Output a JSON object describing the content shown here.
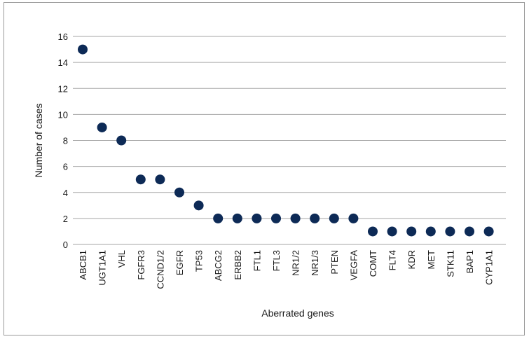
{
  "chart_data": {
    "type": "scatter",
    "title": "",
    "xlabel": "Aberrated genes",
    "ylabel": "Number of cases",
    "categories": [
      "ABCB1",
      "UGT1A1",
      "VHL",
      "FGFR3",
      "CCND1/2",
      "EGFR",
      "TP53",
      "ABCG2",
      "ERBB2",
      "FTL1",
      "FTL3",
      "NR1/2",
      "NR1/3",
      "PTEN",
      "VEGFA",
      "COMT",
      "FLT4",
      "KDR",
      "MET",
      "STK11",
      "BAP1",
      "CYP1A1"
    ],
    "values": [
      15,
      9,
      8,
      5,
      5,
      4,
      3,
      2,
      2,
      2,
      2,
      2,
      2,
      2,
      2,
      1,
      1,
      1,
      1,
      1,
      1,
      1
    ],
    "ylim": [
      0,
      16
    ],
    "yticks": [
      0,
      2,
      4,
      6,
      8,
      10,
      12,
      14,
      16
    ],
    "grid": true,
    "legend": "none",
    "marker_color": "#0d2a56",
    "grid_color": "#a6a6a6"
  }
}
